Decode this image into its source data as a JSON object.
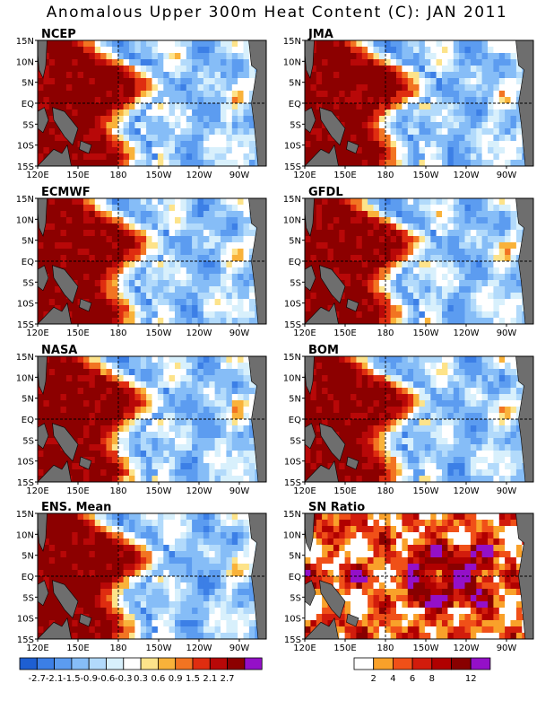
{
  "title": "Anomalous Upper 300m Heat Content (C): JAN 2011",
  "panels": [
    {
      "label": "NCEP",
      "style": "anom",
      "seed": 3
    },
    {
      "label": "JMA",
      "style": "anom",
      "seed": 7
    },
    {
      "label": "ECMWF",
      "style": "anom",
      "seed": 11
    },
    {
      "label": "GFDL",
      "style": "anom",
      "seed": 13
    },
    {
      "label": "NASA",
      "style": "anom",
      "seed": 17
    },
    {
      "label": "BOM",
      "style": "anom",
      "seed": 19
    },
    {
      "label": "ENS. Mean",
      "style": "anom",
      "seed": 23
    },
    {
      "label": "SN Ratio",
      "style": "sn",
      "seed": 29
    }
  ],
  "y_ticks": [
    "15N",
    "10N",
    "5N",
    "EQ",
    "5S",
    "10S",
    "15S"
  ],
  "x_ticks": [
    "120E",
    "150E",
    "180",
    "150W",
    "120W",
    "90W"
  ],
  "anom_colorbar": {
    "colors": [
      "#1e5fd2",
      "#3c7fe6",
      "#5c9cf0",
      "#86bdf7",
      "#b2dafb",
      "#d8f0fc",
      "#ffffff",
      "#fde38a",
      "#f9b23a",
      "#f27422",
      "#df2d10",
      "#b80808",
      "#8c0000",
      "#9410c8"
    ],
    "ticks": [
      "-2.7",
      "-2.1",
      "-1.5",
      "-0.9",
      "-0.6",
      "-0.3",
      "0.3",
      "0.6",
      "0.9",
      "1.5",
      "2.1",
      "2.7"
    ]
  },
  "sn_colorbar": {
    "colors": [
      "#ffffff",
      "#f9a12a",
      "#f05018",
      "#d21c0c",
      "#b00000",
      "#880000",
      "#9410c8"
    ],
    "ticks": [
      "2",
      "4",
      "6",
      "8",
      "12"
    ]
  },
  "colors": {
    "land": "#6e6e6e",
    "frame": "#000000",
    "ref_line": "#000000"
  }
}
